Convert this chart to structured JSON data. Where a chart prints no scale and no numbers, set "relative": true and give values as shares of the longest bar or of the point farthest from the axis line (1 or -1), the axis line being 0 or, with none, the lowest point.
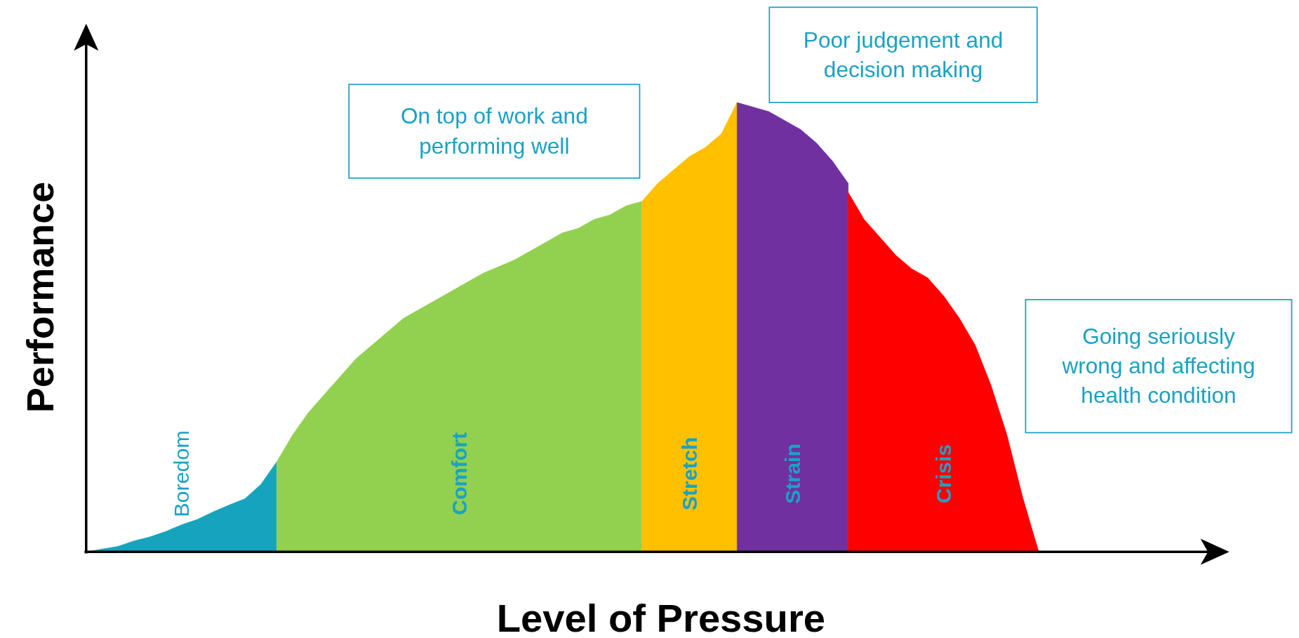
{
  "chart_data": {
    "type": "area",
    "relative": true,
    "xlabel": "Level of Pressure",
    "ylabel": "Performance",
    "categories": [
      null,
      null,
      null,
      null,
      null,
      null,
      null,
      null,
      null,
      null,
      null,
      null,
      null,
      null,
      null,
      null,
      null,
      null,
      null,
      null,
      null,
      null,
      null,
      null,
      null,
      null,
      null,
      null,
      null,
      null,
      null,
      null,
      null,
      null,
      null,
      null,
      null,
      null,
      null,
      null,
      null,
      null,
      null,
      null,
      null,
      null,
      null,
      null,
      null,
      null,
      null,
      null,
      null,
      null,
      null,
      null,
      null,
      null,
      null,
      null,
      null,
      null,
      null,
      null,
      null,
      null,
      null,
      null,
      null,
      null,
      null,
      null,
      null
    ],
    "series": [
      {
        "name": "Boredom",
        "color": "#16a3bd",
        "values": [
          0,
          0.006,
          0.012,
          0.024,
          0.033,
          0.045,
          0.06,
          0.072,
          0.089,
          0.104,
          0.118,
          0.15,
          0.2,
          null,
          null,
          null,
          null,
          null,
          null,
          null,
          null,
          null,
          null,
          null,
          null,
          null,
          null,
          null,
          null,
          null,
          null,
          null,
          null,
          null,
          null,
          null,
          null,
          null,
          null,
          null,
          null,
          null,
          null,
          null,
          null,
          null,
          null,
          null,
          null,
          null,
          null,
          null,
          null,
          null,
          null,
          null,
          null,
          null,
          null,
          null,
          null,
          null,
          null,
          null,
          null,
          null,
          null,
          null,
          null,
          null,
          null,
          null,
          null
        ]
      },
      {
        "name": "Comfort",
        "color": "#92d050",
        "values": [
          null,
          null,
          null,
          null,
          null,
          null,
          null,
          null,
          null,
          null,
          null,
          null,
          0.2,
          0.26,
          0.31,
          0.35,
          0.39,
          0.43,
          0.46,
          0.49,
          0.52,
          0.54,
          0.56,
          0.58,
          0.6,
          0.62,
          0.635,
          0.65,
          0.67,
          0.69,
          0.71,
          0.72,
          0.74,
          0.75,
          0.77,
          0.78,
          null,
          null,
          null,
          null,
          null,
          null,
          null,
          null,
          null,
          null,
          null,
          null,
          null,
          null,
          null,
          null,
          null,
          null,
          null,
          null,
          null,
          null,
          null,
          null,
          null,
          null,
          null,
          null,
          null,
          null,
          null,
          null,
          null,
          null,
          null,
          null,
          null
        ]
      },
      {
        "name": "Stretch",
        "color": "#ffc000",
        "values": [
          null,
          null,
          null,
          null,
          null,
          null,
          null,
          null,
          null,
          null,
          null,
          null,
          null,
          null,
          null,
          null,
          null,
          null,
          null,
          null,
          null,
          null,
          null,
          null,
          null,
          null,
          null,
          null,
          null,
          null,
          null,
          null,
          null,
          null,
          null,
          0.78,
          0.82,
          0.85,
          0.88,
          0.9,
          0.93,
          1,
          null,
          null,
          null,
          null,
          null,
          null,
          null,
          null,
          null,
          null,
          null,
          null,
          null,
          null,
          null,
          null,
          null,
          null,
          null,
          null,
          null,
          null,
          null,
          null,
          null,
          null,
          null,
          null,
          null,
          null,
          null
        ]
      },
      {
        "name": "Strain",
        "color": "#7030a0",
        "values": [
          null,
          null,
          null,
          null,
          null,
          null,
          null,
          null,
          null,
          null,
          null,
          null,
          null,
          null,
          null,
          null,
          null,
          null,
          null,
          null,
          null,
          null,
          null,
          null,
          null,
          null,
          null,
          null,
          null,
          null,
          null,
          null,
          null,
          null,
          null,
          null,
          null,
          null,
          null,
          null,
          null,
          1,
          0.99,
          0.98,
          0.96,
          0.94,
          0.91,
          0.87,
          0.82,
          null,
          null,
          null,
          null,
          null,
          null,
          null,
          null,
          null,
          null,
          null,
          null,
          null,
          null,
          null,
          null,
          null,
          null,
          null,
          null,
          null,
          null,
          null,
          null
        ]
      },
      {
        "name": "Crisis",
        "color": "#ff0000",
        "values": [
          null,
          null,
          null,
          null,
          null,
          null,
          null,
          null,
          null,
          null,
          null,
          null,
          null,
          null,
          null,
          null,
          null,
          null,
          null,
          null,
          null,
          null,
          null,
          null,
          null,
          null,
          null,
          null,
          null,
          null,
          null,
          null,
          null,
          null,
          null,
          null,
          null,
          null,
          null,
          null,
          null,
          null,
          null,
          null,
          null,
          null,
          null,
          null,
          0.8,
          0.74,
          0.7,
          0.66,
          0.63,
          0.61,
          0.57,
          0.52,
          0.46,
          0.37,
          0.26,
          0.12,
          0,
          null,
          null,
          null,
          null,
          null,
          null,
          null,
          null,
          null,
          null,
          null,
          null
        ]
      }
    ],
    "annotations": [
      "On top of work and performing well",
      "Poor judgement and decision making",
      "Going seriously wrong and affecting health condition"
    ]
  }
}
